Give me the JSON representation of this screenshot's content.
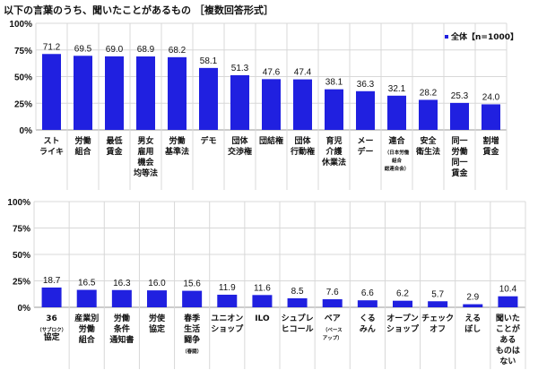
{
  "title": "以下の言葉のうち、聞いたことがあるもの ［複数回答形式］",
  "colors": {
    "bar": "#2020e0",
    "grid": "#d8d8d8",
    "text": "#111111"
  },
  "chart_data": [
    {
      "type": "bar",
      "legend": {
        "label": "全体【n=1000】",
        "placement": "top-right"
      },
      "ylim": [
        0,
        100
      ],
      "yticks": [
        "0%",
        "25%",
        "50%",
        "75%",
        "100%"
      ],
      "grid": true,
      "categories": [
        [
          {
            "t": "スト"
          },
          {
            "t": "ライキ"
          }
        ],
        [
          {
            "t": "労働"
          },
          {
            "t": "組合"
          }
        ],
        [
          {
            "t": "最低"
          },
          {
            "t": "賃金"
          }
        ],
        [
          {
            "t": "男女"
          },
          {
            "t": "雇用"
          },
          {
            "t": "機会"
          },
          {
            "t": "均等法"
          }
        ],
        [
          {
            "t": "労働"
          },
          {
            "t": "基準法"
          }
        ],
        [
          {
            "t": "デモ"
          }
        ],
        [
          {
            "t": "団体"
          },
          {
            "t": "交渉権"
          }
        ],
        [
          {
            "t": "団結権"
          }
        ],
        [
          {
            "t": "団体"
          },
          {
            "t": "行動権"
          }
        ],
        [
          {
            "t": "育児"
          },
          {
            "t": "介護"
          },
          {
            "t": "休業法"
          }
        ],
        [
          {
            "t": "メー"
          },
          {
            "t": "デー"
          }
        ],
        [
          {
            "t": "連合"
          },
          {
            "t": "（日本労働",
            "small": true
          },
          {
            "t": "組合",
            "small": true
          },
          {
            "t": "総連合会）",
            "small": true
          }
        ],
        [
          {
            "t": "安全"
          },
          {
            "t": "衛生法"
          }
        ],
        [
          {
            "t": "同一"
          },
          {
            "t": "労働"
          },
          {
            "t": "同一"
          },
          {
            "t": "賃金"
          }
        ],
        [
          {
            "t": "割増"
          },
          {
            "t": "賃金"
          }
        ]
      ],
      "values": [
        71.2,
        69.5,
        69.0,
        68.9,
        68.2,
        58.1,
        51.3,
        47.6,
        47.4,
        38.1,
        36.3,
        32.1,
        28.2,
        25.3,
        24.0
      ],
      "labels": [
        "71.2",
        "69.5",
        "69.0",
        "68.9",
        "68.2",
        "58.1",
        "51.3",
        "47.6",
        "47.4",
        "38.1",
        "36.3",
        "32.1",
        "28.2",
        "25.3",
        "24.0"
      ]
    },
    {
      "type": "bar",
      "ylim": [
        0,
        100
      ],
      "yticks": [
        "0%",
        "25%",
        "50%",
        "75%",
        "100%"
      ],
      "grid": true,
      "categories": [
        [
          {
            "t": "36"
          },
          {
            "t": "（サブロク）",
            "small": true
          },
          {
            "t": "協定"
          }
        ],
        [
          {
            "t": "産業別"
          },
          {
            "t": "労働"
          },
          {
            "t": "組合"
          }
        ],
        [
          {
            "t": "労働"
          },
          {
            "t": "条件"
          },
          {
            "t": "通知書"
          }
        ],
        [
          {
            "t": "労使"
          },
          {
            "t": "協定"
          }
        ],
        [
          {
            "t": "春季"
          },
          {
            "t": "生活"
          },
          {
            "t": "闘争"
          },
          {
            "t": "（春闘）",
            "small": true
          }
        ],
        [
          {
            "t": "ユニオン"
          },
          {
            "t": "ショップ"
          }
        ],
        [
          {
            "t": "ILO"
          }
        ],
        [
          {
            "t": "シュプレ"
          },
          {
            "t": "ヒコール"
          }
        ],
        [
          {
            "t": "ベア"
          },
          {
            "t": "（ベース",
            "small": true
          },
          {
            "t": "アップ）",
            "small": true
          }
        ],
        [
          {
            "t": "くる"
          },
          {
            "t": "みん"
          }
        ],
        [
          {
            "t": "オープン"
          },
          {
            "t": "ショップ"
          }
        ],
        [
          {
            "t": "チェック"
          },
          {
            "t": "オフ"
          }
        ],
        [
          {
            "t": "える"
          },
          {
            "t": "ぼし"
          }
        ],
        [
          {
            "t": "聞いた"
          },
          {
            "t": "ことが"
          },
          {
            "t": "ある"
          },
          {
            "t": "ものは"
          },
          {
            "t": "ない"
          }
        ]
      ],
      "values": [
        18.7,
        16.5,
        16.3,
        16.0,
        15.6,
        11.9,
        11.6,
        8.5,
        7.6,
        6.6,
        6.2,
        5.7,
        2.9,
        10.4
      ],
      "labels": [
        "18.7",
        "16.5",
        "16.3",
        "16.0",
        "15.6",
        "11.9",
        "11.6",
        "8.5",
        "7.6",
        "6.6",
        "6.2",
        "5.7",
        "2.9",
        "10.4"
      ]
    }
  ]
}
